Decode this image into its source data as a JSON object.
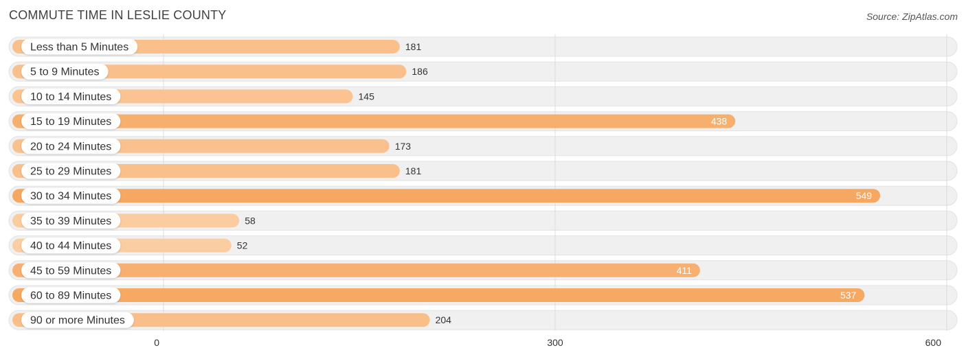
{
  "title": "COMMUTE TIME IN LESLIE COUNTY",
  "source": "Source: ZipAtlas.com",
  "chart_data": {
    "type": "bar",
    "orientation": "horizontal",
    "title": "COMMUTE TIME IN LESLIE COUNTY",
    "categories": [
      "Less than 5 Minutes",
      "5 to 9 Minutes",
      "10 to 14 Minutes",
      "15 to 19 Minutes",
      "20 to 24 Minutes",
      "25 to 29 Minutes",
      "30 to 34 Minutes",
      "35 to 39 Minutes",
      "40 to 44 Minutes",
      "45 to 59 Minutes",
      "60 to 89 Minutes",
      "90 or more Minutes"
    ],
    "values": [
      181,
      186,
      145,
      438,
      173,
      181,
      549,
      58,
      52,
      411,
      537,
      204
    ],
    "value_labels": [
      "181",
      "186",
      "145",
      "438",
      "173",
      "181",
      "549",
      "58",
      "52",
      "411",
      "537",
      "204"
    ],
    "xlim": [
      0,
      600
    ],
    "xticks": [
      0,
      300,
      600
    ],
    "xtick_labels": [
      "0",
      "300",
      "600"
    ],
    "grid": true,
    "xlabel": "",
    "ylabel": "",
    "colors": {
      "bar_light": "#fbcda2",
      "bar_dark": "#f6a862",
      "track": "#f0f0f0",
      "track_border": "#e2e2e2",
      "grid": "#dcdcdc",
      "label_bg": "#ffffff",
      "text": "#333333",
      "value_inside": "#ffffff"
    }
  }
}
